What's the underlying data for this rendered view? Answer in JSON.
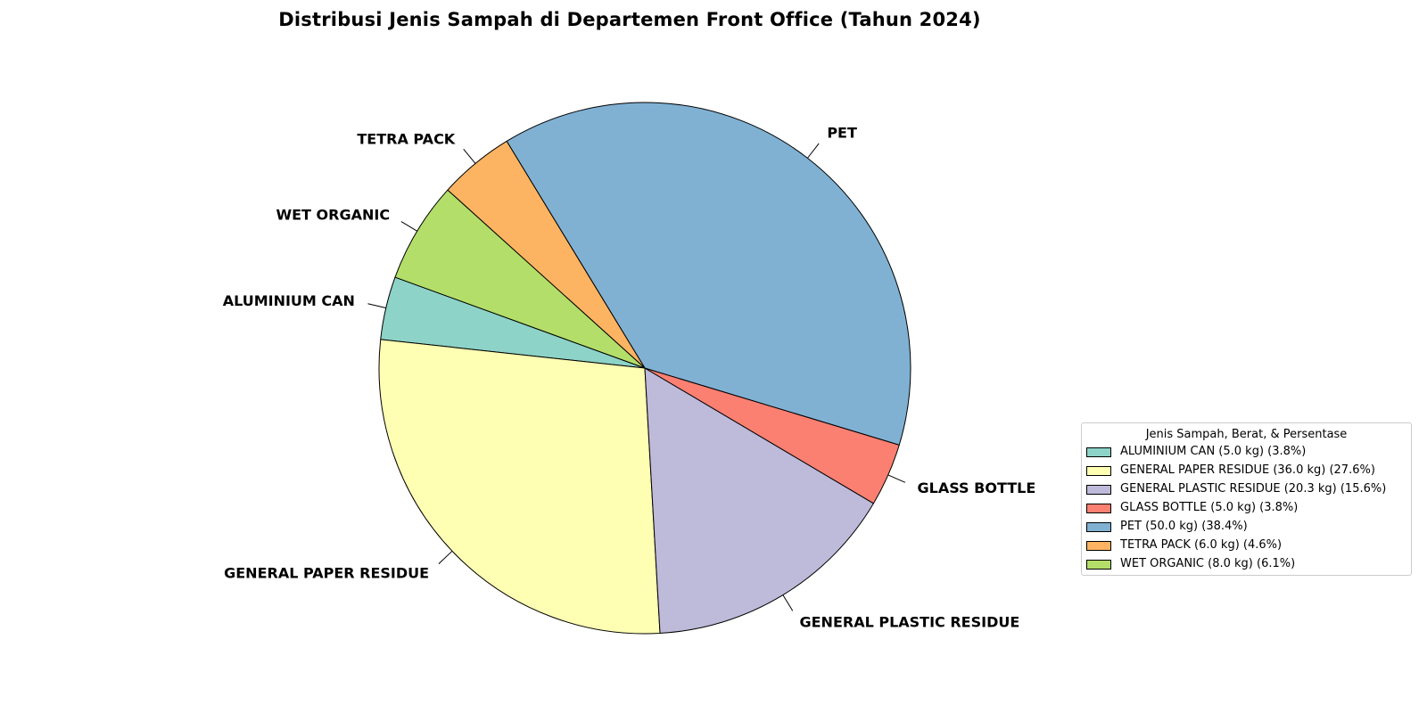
{
  "chart_data": {
    "type": "pie",
    "title": "Distribusi Jenis Sampah di Departemen Front Office (Tahun 2024)",
    "slices": [
      {
        "label": "ALUMINIUM CAN",
        "value": 5.0,
        "percent": 3.8,
        "color": "#8dd3c7",
        "legend": "ALUMINIUM CAN (5.0 kg)  (3.8%)"
      },
      {
        "label": "GENERAL PAPER RESIDUE",
        "value": 36.0,
        "percent": 27.6,
        "color": "#ffffb3",
        "legend": "GENERAL PAPER RESIDUE (36.0 kg)  (27.6%)"
      },
      {
        "label": "GENERAL PLASTIC RESIDUE",
        "value": 20.3,
        "percent": 15.6,
        "color": "#bebada",
        "legend": "GENERAL PLASTIC RESIDUE (20.3 kg)  (15.6%)"
      },
      {
        "label": "GLASS BOTTLE",
        "value": 5.0,
        "percent": 3.8,
        "color": "#fb8072",
        "legend": "GLASS BOTTLE (5.0 kg)  (3.8%)"
      },
      {
        "label": "PET",
        "value": 50.0,
        "percent": 38.4,
        "color": "#80b1d3",
        "legend": "PET (50.0 kg)  (38.4%)"
      },
      {
        "label": "TETRA PACK",
        "value": 6.0,
        "percent": 4.6,
        "color": "#fdb462",
        "legend": "TETRA PACK (6.0 kg)  (4.6%)"
      },
      {
        "label": "WET ORGANIC",
        "value": 8.0,
        "percent": 6.1,
        "color": "#b3de69",
        "legend": "WET ORGANIC (8.0 kg)  (6.1%)"
      }
    ],
    "legend_title": "Jenis Sampah, Berat, & Persentase",
    "legend_position": "right"
  }
}
